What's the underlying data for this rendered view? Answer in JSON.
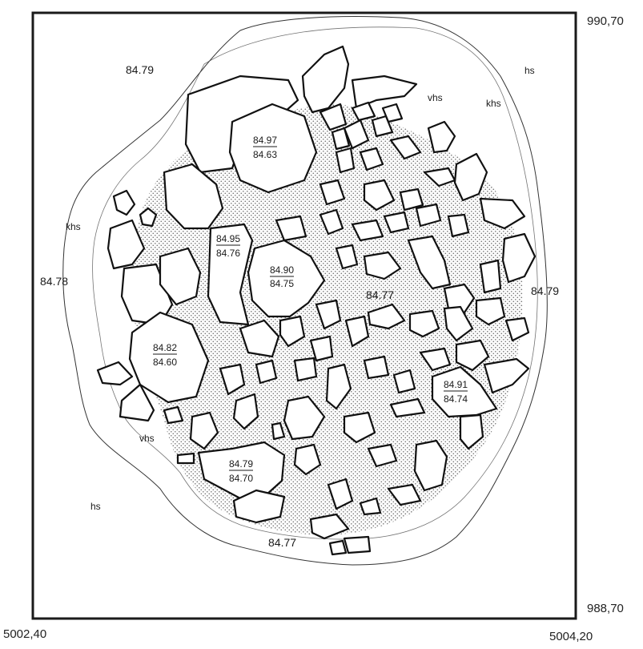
{
  "coordinates": {
    "top_right": "990,70",
    "bottom_right": "988,70",
    "bottom_left": "5002,40",
    "bottom_x": "5004,20"
  },
  "elevations": {
    "top_left": "84.79",
    "left": "84.78",
    "right": "84.79",
    "center": "84.77",
    "bottom": "84.77"
  },
  "soil_labels": {
    "hs_top_right": "hs",
    "vhs_top": "vhs",
    "khs_right": "khs",
    "khs_left": "khs",
    "vhs_bottom": "vhs",
    "hs_bottom_left": "hs"
  },
  "stone_levels": {
    "s1": {
      "top": "84.97",
      "bottom": "84.63"
    },
    "s2": {
      "top": "84.95",
      "bottom": "84.76"
    },
    "s3": {
      "top": "84.90",
      "bottom": "84.75"
    },
    "s4": {
      "top": "84.82",
      "bottom": "84.60"
    },
    "s5": {
      "top": "84.91",
      "bottom": "84.74"
    },
    "s6": {
      "top": "84.79",
      "bottom": "84.70"
    }
  }
}
